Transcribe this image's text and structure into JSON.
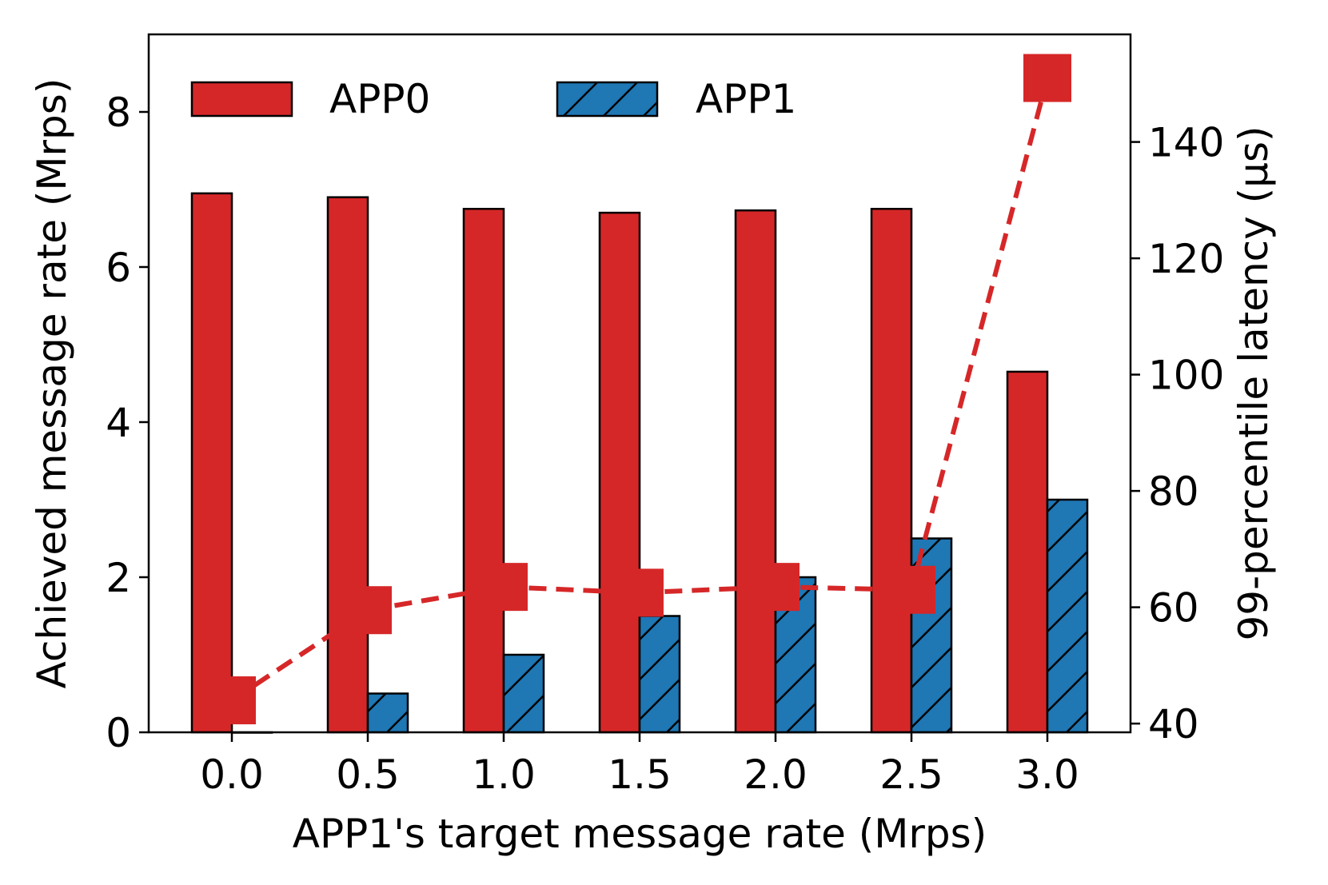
{
  "chart_data": {
    "type": "bar",
    "categories": [
      "0.0",
      "0.5",
      "1.0",
      "1.5",
      "2.0",
      "2.5",
      "3.0"
    ],
    "xlabel": "APP1's target message rate (Mrps)",
    "ylabel": "Achieved message rate (Mrps)",
    "y2label": "99-percentile latency (μs)",
    "ylim": [
      0,
      9
    ],
    "y2lim": [
      38.5,
      158.5
    ],
    "yticks": [
      0,
      2,
      4,
      6,
      8
    ],
    "y2ticks": [
      40,
      60,
      80,
      100,
      120,
      140
    ],
    "legend": "top-left",
    "grid": false,
    "series": [
      {
        "name": "APP0",
        "type": "bar",
        "axis": "left",
        "color": "#d62728",
        "hatch": "none",
        "values": [
          6.95,
          6.9,
          6.75,
          6.7,
          6.73,
          6.75,
          4.65
        ]
      },
      {
        "name": "APP1",
        "type": "bar",
        "axis": "left",
        "color": "#1f77b4",
        "hatch": "diagonal",
        "values": [
          0.0,
          0.5,
          1.0,
          1.5,
          2.0,
          2.5,
          3.0
        ]
      },
      {
        "type": "line",
        "axis": "right",
        "color": "#d62728",
        "style": "dashed",
        "marker": "square",
        "values": [
          44,
          59.5,
          63.5,
          62.5,
          63.5,
          63,
          151
        ]
      }
    ]
  }
}
